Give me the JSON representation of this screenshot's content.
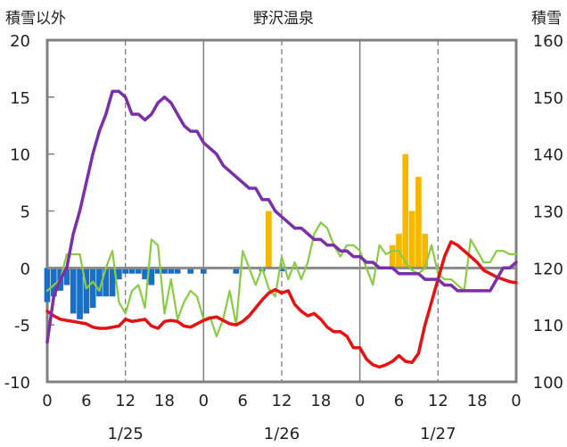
{
  "chart_data": {
    "type": "combo",
    "title": "野沢温泉",
    "left_axis_label": "積雪以外",
    "right_axis_label": "積雪",
    "left_ylim": [
      -10,
      20
    ],
    "right_ylim": [
      100,
      160
    ],
    "left_ticks": [
      "20",
      "15",
      "10",
      "5",
      "0",
      "-5",
      "-10"
    ],
    "right_ticks": [
      "160",
      "150",
      "140",
      "130",
      "120",
      "110",
      "100"
    ],
    "x_range_hours": [
      0,
      72
    ],
    "x_ticks": [
      "0",
      "6",
      "12",
      "18",
      "0",
      "6",
      "12",
      "18",
      "0",
      "6",
      "12",
      "18",
      "0"
    ],
    "date_labels": [
      "1/25",
      "1/26",
      "1/27"
    ],
    "grid": "vertical dashed at 12h, solid at day boundaries",
    "series": [
      {
        "color": "#1a6fc4",
        "kind": "bar",
        "axis": "left",
        "x": [
          0,
          1,
          2,
          3,
          4,
          5,
          6,
          7,
          8,
          9,
          10,
          11,
          12,
          13,
          14,
          15,
          16,
          17,
          18,
          19,
          20,
          22,
          24,
          29,
          33,
          36
        ],
        "values": [
          -3,
          -2.5,
          -2,
          -1.5,
          -4,
          -4.5,
          -4,
          -3.5,
          -2.5,
          -2.5,
          -2.5,
          -1,
          -0.5,
          -0.5,
          -0.5,
          -1,
          -1.5,
          -0.5,
          -0.5,
          -0.5,
          -0.5,
          -0.5,
          -0.5,
          -0.5,
          -0.3,
          -0.3
        ]
      },
      {
        "color": "#f5b800",
        "kind": "bar",
        "axis": "left",
        "x": [
          34,
          53,
          54,
          55,
          56,
          57,
          58
        ],
        "values": [
          5,
          2,
          3,
          10,
          5,
          8,
          3
        ]
      },
      {
        "color": "#88cc44",
        "kind": "line",
        "axis": "left",
        "x": [
          0,
          1,
          2,
          3,
          4,
          5,
          6,
          7,
          8,
          9,
          10,
          11,
          12,
          13,
          14,
          15,
          16,
          17,
          18,
          19,
          20,
          21,
          22,
          23,
          24,
          25,
          26,
          27,
          28,
          29,
          30,
          31,
          32,
          33,
          34,
          35,
          36,
          37,
          38,
          39,
          40,
          41,
          42,
          43,
          44,
          45,
          46,
          47,
          48,
          49,
          50,
          51,
          52,
          53,
          54,
          55,
          56,
          57,
          58,
          59,
          60,
          61,
          62,
          63,
          64,
          65,
          66,
          67,
          68,
          69,
          70,
          71,
          72
        ],
        "values": [
          -2,
          -1.5,
          -1,
          1.2,
          1.2,
          1.2,
          -1.8,
          -1.2,
          -2,
          0,
          1.5,
          -3,
          -4,
          -2,
          -1.5,
          -3.5,
          2.5,
          2,
          -4,
          -1,
          -4.5,
          -3,
          -2,
          -2.5,
          -4.5,
          -4.3,
          -6,
          -4.5,
          -2,
          -5,
          1.5,
          0,
          -1.5,
          0,
          -1.8,
          -2.5,
          1,
          -1,
          0.5,
          -1,
          0.5,
          3,
          4,
          3.5,
          2,
          1,
          2,
          2,
          1.5,
          0,
          -1.5,
          2,
          1.2,
          1.5,
          1.5,
          0.5,
          -0.2,
          -0.5,
          0,
          2,
          -0.5,
          -1,
          -1,
          -1.5,
          -2,
          2.5,
          1.5,
          0.5,
          0.5,
          1.5,
          1.5,
          1.2,
          1.2
        ]
      },
      {
        "color": "#e81010",
        "kind": "line",
        "axis": "left",
        "x": [
          0,
          1,
          2,
          3,
          4,
          5,
          6,
          7,
          8,
          9,
          10,
          11,
          12,
          13,
          14,
          15,
          16,
          17,
          18,
          19,
          20,
          21,
          22,
          23,
          24,
          25,
          26,
          27,
          28,
          29,
          30,
          31,
          32,
          33,
          34,
          35,
          36,
          37,
          38,
          39,
          40,
          41,
          42,
          43,
          44,
          45,
          46,
          47,
          48,
          49,
          50,
          51,
          52,
          53,
          54,
          55,
          56,
          57,
          58,
          59,
          60,
          61,
          62,
          63,
          64,
          65,
          66,
          67,
          68,
          69,
          70,
          71,
          72
        ],
        "values": [
          -3.8,
          -4.2,
          -4.5,
          -4.6,
          -4.7,
          -4.8,
          -4.9,
          -5.2,
          -5.3,
          -5.3,
          -5.2,
          -5.1,
          -4.5,
          -4.7,
          -4.6,
          -4.5,
          -5.1,
          -5.3,
          -4.7,
          -4.6,
          -4.7,
          -5.1,
          -5.2,
          -4.9,
          -4.6,
          -4.4,
          -4.3,
          -4.6,
          -4.9,
          -5,
          -4.7,
          -4.2,
          -3.5,
          -2.8,
          -2.2,
          -1.9,
          -2.2,
          -2,
          -3.2,
          -3.8,
          -4.2,
          -4,
          -4.5,
          -5.2,
          -5.6,
          -5.6,
          -6,
          -7,
          -7,
          -8,
          -8.5,
          -8.7,
          -8.5,
          -8.2,
          -7.7,
          -8.2,
          -8.3,
          -7.5,
          -5,
          -3,
          -1,
          1,
          2.3,
          2,
          1.5,
          1,
          0.5,
          -0.2,
          -0.5,
          -0.8,
          -1,
          -1.2,
          -1.3
        ]
      },
      {
        "color": "#7b2fa8",
        "kind": "line",
        "axis": "right",
        "x": [
          0,
          1,
          2,
          3,
          4,
          5,
          6,
          7,
          8,
          9,
          10,
          11,
          12,
          13,
          14,
          15,
          16,
          17,
          18,
          19,
          20,
          21,
          22,
          23,
          24,
          25,
          26,
          27,
          28,
          29,
          30,
          31,
          32,
          33,
          34,
          35,
          36,
          37,
          38,
          39,
          40,
          41,
          42,
          43,
          44,
          45,
          46,
          47,
          48,
          49,
          50,
          51,
          52,
          53,
          54,
          55,
          56,
          57,
          58,
          59,
          60,
          61,
          62,
          63,
          64,
          65,
          66,
          67,
          68,
          69,
          70,
          71,
          72
        ],
        "values": [
          107,
          115,
          118,
          120,
          126,
          130,
          135,
          140,
          144,
          147,
          151,
          151,
          150,
          147,
          147,
          146,
          147,
          149,
          150,
          149,
          147,
          145,
          144,
          144,
          142,
          141,
          140,
          138,
          137,
          136,
          135,
          134,
          134,
          132,
          132,
          130,
          129,
          128,
          127,
          127,
          126,
          125,
          125,
          124,
          124,
          123,
          123,
          122,
          122,
          121,
          121,
          120,
          120,
          120,
          119,
          119,
          119,
          119,
          118,
          118,
          118,
          117,
          117,
          116,
          116,
          116,
          116,
          116,
          116,
          118,
          120,
          120,
          121
        ]
      }
    ]
  }
}
